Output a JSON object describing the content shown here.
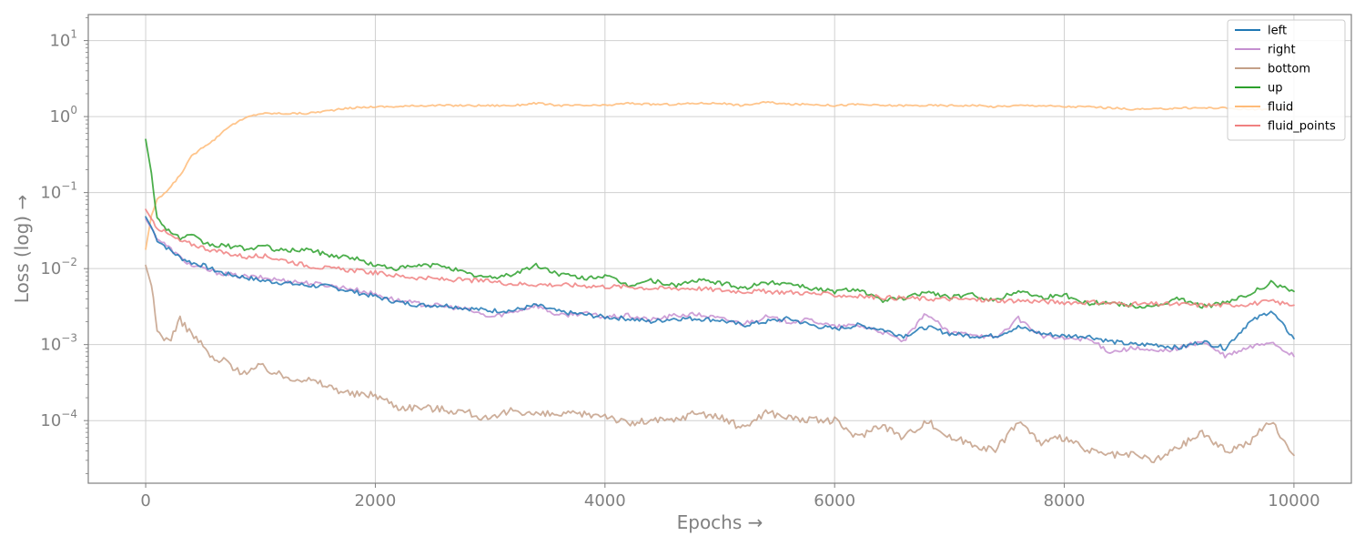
{
  "chart_data": {
    "type": "line",
    "xlabel": "Epochs →",
    "ylabel": "Loss (log) →",
    "xlim": [
      -500,
      10500
    ],
    "ylim": [
      1.5e-05,
      22
    ],
    "yscale": "log",
    "grid": true,
    "legend_position": "top-right",
    "x_ticks": [
      {
        "value": 0,
        "label": "0"
      },
      {
        "value": 2000,
        "label": "2000"
      },
      {
        "value": 4000,
        "label": "4000"
      },
      {
        "value": 6000,
        "label": "6000"
      },
      {
        "value": 8000,
        "label": "8000"
      },
      {
        "value": 10000,
        "label": "10000"
      }
    ],
    "y_ticks": [
      {
        "value": 0.0001,
        "base": "10",
        "exp": "−4"
      },
      {
        "value": 0.001,
        "base": "10",
        "exp": "−3"
      },
      {
        "value": 0.01,
        "base": "10",
        "exp": "−2"
      },
      {
        "value": 0.1,
        "base": "10",
        "exp": "−1"
      },
      {
        "value": 1,
        "base": "10",
        "exp": "0"
      },
      {
        "value": 10,
        "base": "10",
        "exp": "1"
      }
    ],
    "x": [
      0,
      50,
      100,
      200,
      300,
      400,
      500,
      600,
      700,
      800,
      900,
      1000,
      1200,
      1400,
      1600,
      1800,
      2000,
      2200,
      2400,
      2600,
      2800,
      3000,
      3200,
      3400,
      3600,
      3800,
      4000,
      4200,
      4400,
      4600,
      4800,
      5000,
      5200,
      5400,
      5600,
      5800,
      6000,
      6200,
      6400,
      6600,
      6800,
      7000,
      7200,
      7400,
      7600,
      7800,
      8000,
      8200,
      8400,
      8600,
      8800,
      9000,
      9200,
      9400,
      9600,
      9800,
      10000
    ],
    "series": [
      {
        "name": "left",
        "color": "#1f77b4",
        "values": [
          0.048,
          0.035,
          0.024,
          0.018,
          0.014,
          0.012,
          0.011,
          0.0095,
          0.0085,
          0.008,
          0.0075,
          0.007,
          0.0065,
          0.006,
          0.0058,
          0.005,
          0.0043,
          0.0036,
          0.0033,
          0.0033,
          0.003,
          0.0028,
          0.0028,
          0.0033,
          0.0027,
          0.0025,
          0.0023,
          0.0022,
          0.002,
          0.0022,
          0.0022,
          0.0021,
          0.0018,
          0.002,
          0.0022,
          0.0018,
          0.0016,
          0.0018,
          0.0016,
          0.0013,
          0.0017,
          0.0014,
          0.0013,
          0.0013,
          0.0017,
          0.0014,
          0.0013,
          0.0013,
          0.0011,
          0.001,
          0.001,
          0.0009,
          0.0011,
          0.0009,
          0.0019,
          0.0028,
          0.0012
        ]
      },
      {
        "name": "right",
        "color": "#c58fd0",
        "values": [
          0.045,
          0.034,
          0.025,
          0.019,
          0.014,
          0.011,
          0.01,
          0.009,
          0.0085,
          0.008,
          0.0078,
          0.0076,
          0.007,
          0.0065,
          0.006,
          0.0054,
          0.0046,
          0.0038,
          0.0034,
          0.0032,
          0.0029,
          0.0023,
          0.0027,
          0.0033,
          0.0024,
          0.0026,
          0.0023,
          0.0024,
          0.0021,
          0.0024,
          0.0025,
          0.0022,
          0.0019,
          0.0023,
          0.002,
          0.0021,
          0.0017,
          0.0018,
          0.0015,
          0.0011,
          0.0026,
          0.0014,
          0.0014,
          0.0012,
          0.0022,
          0.0013,
          0.0012,
          0.0012,
          0.0008,
          0.0009,
          0.0008,
          0.0009,
          0.0011,
          0.0007,
          0.0009,
          0.0011,
          0.0007
        ]
      },
      {
        "name": "bottom",
        "color": "#c4a088",
        "values": [
          0.011,
          0.006,
          0.0015,
          0.0011,
          0.0021,
          0.0014,
          0.00095,
          0.0006,
          0.00062,
          0.00045,
          0.00045,
          0.00052,
          0.00038,
          0.00035,
          0.00028,
          0.00022,
          0.00022,
          0.00015,
          0.00015,
          0.00014,
          0.00013,
          0.0001,
          0.00014,
          0.00012,
          0.00012,
          0.00012,
          0.00012,
          9e-05,
          0.0001,
          0.0001,
          0.00013,
          0.00011,
          8e-05,
          0.00013,
          0.00011,
          0.0001,
          0.0001,
          6e-05,
          9e-05,
          6e-05,
          0.0001,
          6e-05,
          5e-05,
          4e-05,
          0.0001,
          5e-05,
          6e-05,
          4e-05,
          3.5e-05,
          3.5e-05,
          3e-05,
          4.5e-05,
          7e-05,
          4e-05,
          5e-05,
          0.0001,
          3.5e-05
        ]
      },
      {
        "name": "up",
        "color": "#2ca02c",
        "values": [
          0.5,
          0.18,
          0.045,
          0.032,
          0.025,
          0.027,
          0.022,
          0.02,
          0.02,
          0.019,
          0.018,
          0.02,
          0.017,
          0.018,
          0.015,
          0.014,
          0.011,
          0.01,
          0.011,
          0.011,
          0.0085,
          0.0075,
          0.0085,
          0.011,
          0.0085,
          0.0075,
          0.008,
          0.006,
          0.007,
          0.006,
          0.007,
          0.0065,
          0.0055,
          0.0065,
          0.0065,
          0.0055,
          0.005,
          0.0055,
          0.0038,
          0.004,
          0.005,
          0.0042,
          0.0045,
          0.0038,
          0.0052,
          0.0042,
          0.0045,
          0.0035,
          0.0036,
          0.0032,
          0.0032,
          0.004,
          0.0032,
          0.0035,
          0.0045,
          0.0065,
          0.005
        ]
      },
      {
        "name": "fluid",
        "color": "#ffbb78",
        "values": [
          0.018,
          0.05,
          0.08,
          0.11,
          0.17,
          0.3,
          0.4,
          0.5,
          0.7,
          0.85,
          1.0,
          1.1,
          1.1,
          1.1,
          1.2,
          1.3,
          1.35,
          1.35,
          1.4,
          1.4,
          1.4,
          1.4,
          1.4,
          1.5,
          1.4,
          1.4,
          1.4,
          1.5,
          1.45,
          1.45,
          1.5,
          1.5,
          1.4,
          1.55,
          1.45,
          1.45,
          1.4,
          1.45,
          1.4,
          1.4,
          1.4,
          1.4,
          1.4,
          1.35,
          1.4,
          1.4,
          1.35,
          1.35,
          1.3,
          1.25,
          1.25,
          1.3,
          1.3,
          1.3,
          1.25,
          1.25,
          1.25
        ]
      },
      {
        "name": "fluid_points",
        "color": "#f08080",
        "values": [
          0.06,
          0.045,
          0.035,
          0.028,
          0.023,
          0.021,
          0.019,
          0.017,
          0.016,
          0.015,
          0.014,
          0.015,
          0.013,
          0.011,
          0.01,
          0.0095,
          0.0088,
          0.008,
          0.0075,
          0.0072,
          0.007,
          0.0068,
          0.0063,
          0.0062,
          0.0061,
          0.006,
          0.0058,
          0.0058,
          0.0055,
          0.0055,
          0.0055,
          0.0052,
          0.005,
          0.005,
          0.0049,
          0.0047,
          0.0045,
          0.0043,
          0.0042,
          0.0041,
          0.004,
          0.004,
          0.0039,
          0.0038,
          0.0038,
          0.0037,
          0.0036,
          0.0036,
          0.0035,
          0.0034,
          0.0034,
          0.0034,
          0.0033,
          0.0033,
          0.0034,
          0.0037,
          0.0033
        ]
      }
    ]
  }
}
